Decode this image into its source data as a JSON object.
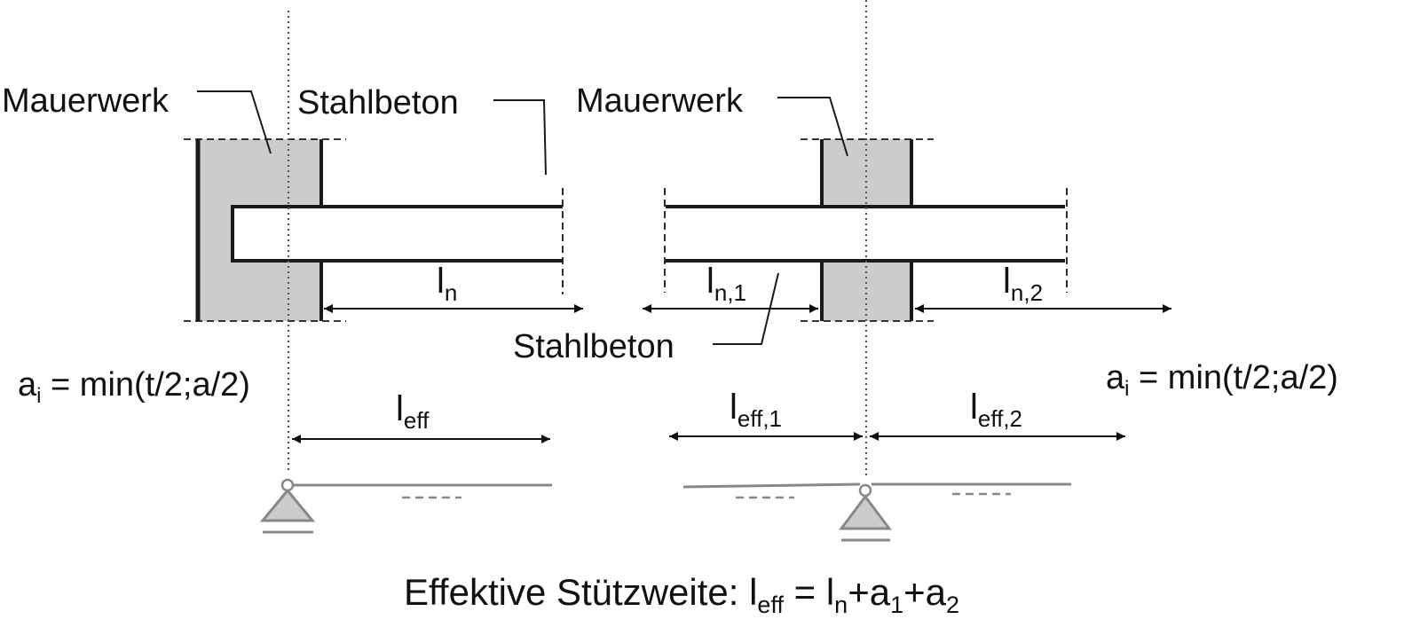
{
  "labels": {
    "mauerwerk_left": "Mauerwerk",
    "stahlbeton_left": "Stahlbeton",
    "mauerwerk_right": "Mauerwerk",
    "stahlbeton_right": "Stahlbeton"
  },
  "dimensions": {
    "ln": {
      "base": "l",
      "sub": "n"
    },
    "ln1": {
      "base": "l",
      "sub": "n,1"
    },
    "ln2": {
      "base": "l",
      "sub": "n,2"
    },
    "leff": {
      "base": "l",
      "sub": "eff"
    },
    "leff1": {
      "base": "l",
      "sub": "eff,1"
    },
    "leff2": {
      "base": "l",
      "sub": "eff,2"
    }
  },
  "support_formula": {
    "var": "a",
    "sub": "i",
    "expr": " = min(t/2;a/2)"
  },
  "caption": {
    "prefix": "Effektive Stützweite: ",
    "l_base": "l",
    "l_sub": "eff",
    "eq": " = ",
    "ln_base": "l",
    "ln_sub": "n",
    "plus1": "+",
    "a1_base": "a",
    "a1_sub": "1",
    "plus2": "+",
    "a2_base": "a",
    "a2_sub": "2"
  },
  "colors": {
    "wall_fill": "#cccccc",
    "stroke": "#1a1a1a",
    "support": "#888888"
  }
}
